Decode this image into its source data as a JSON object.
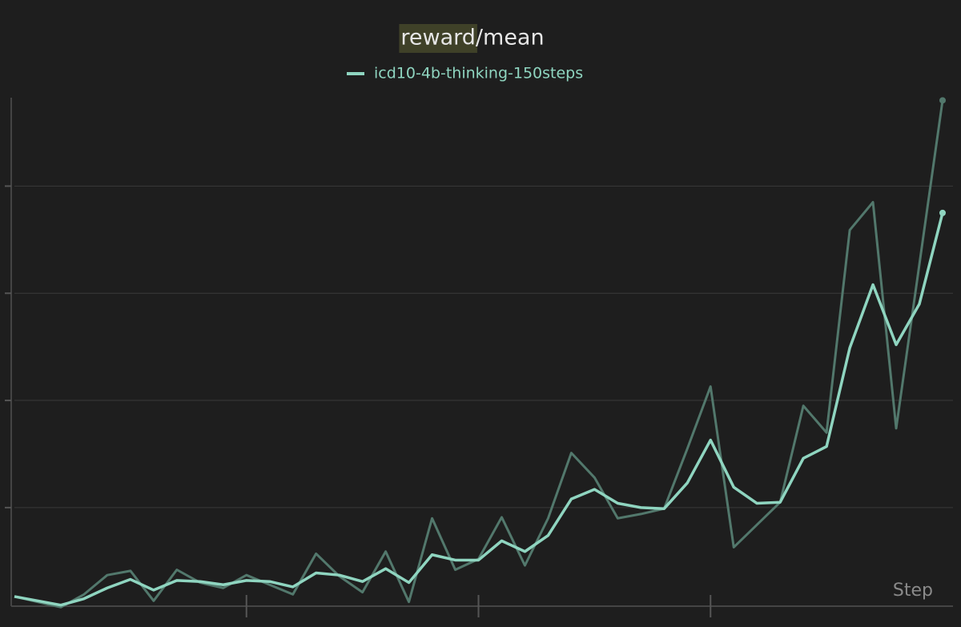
{
  "chart_data": {
    "type": "line",
    "title": "reward/mean",
    "title_highlight": "reward",
    "xlabel": "Step",
    "x": [
      0,
      1,
      2,
      3,
      4,
      5,
      6,
      7,
      8,
      9,
      10,
      11,
      12,
      13,
      14,
      15,
      16,
      17,
      18,
      19,
      20,
      21,
      22,
      23,
      24,
      25,
      26,
      27,
      28,
      29,
      30,
      31,
      32,
      33,
      34,
      35,
      36,
      37,
      38,
      39,
      40
    ],
    "series": [
      {
        "name": "icd10-4b-thinking-150steps",
        "color": "#8fd5c0",
        "raw_color": "#52786c",
        "values": [
          0.17,
          0.13,
          0.09,
          0.15,
          0.25,
          0.33,
          0.23,
          0.32,
          0.31,
          0.28,
          0.32,
          0.31,
          0.26,
          0.39,
          0.37,
          0.31,
          0.43,
          0.3,
          0.56,
          0.51,
          0.51,
          0.69,
          0.59,
          0.74,
          1.08,
          1.17,
          1.04,
          1.0,
          0.99,
          1.23,
          1.63,
          1.19,
          1.04,
          1.05,
          1.46,
          1.57,
          2.49,
          3.08,
          2.52,
          2.9,
          3.75
        ],
        "raw_values": [
          0.17,
          0.12,
          0.07,
          0.19,
          0.37,
          0.41,
          0.13,
          0.42,
          0.3,
          0.25,
          0.37,
          0.28,
          0.19,
          0.57,
          0.36,
          0.21,
          0.59,
          0.12,
          0.9,
          0.42,
          0.52,
          0.91,
          0.46,
          0.9,
          1.51,
          1.28,
          0.9,
          0.94,
          0.99,
          1.55,
          2.13,
          0.63,
          0.84,
          1.05,
          1.95,
          1.7,
          3.59,
          3.85,
          1.74,
          3.27,
          4.8
        ]
      }
    ],
    "xlim": [
      0,
      40
    ],
    "xticks": [
      10,
      20,
      30
    ],
    "ylim": [
      0.08,
      4.84
    ],
    "yticks": [
      1,
      2,
      3,
      4
    ],
    "grid": true
  }
}
